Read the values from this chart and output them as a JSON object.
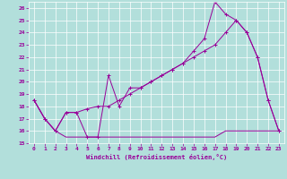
{
  "xlabel": "Windchill (Refroidissement éolien,°C)",
  "background_color": "#b2dfdb",
  "grid_color": "#ffffff",
  "line_color": "#990099",
  "xlim": [
    -0.5,
    23.5
  ],
  "ylim": [
    15,
    26.5
  ],
  "yticks": [
    15,
    16,
    17,
    18,
    19,
    20,
    21,
    22,
    23,
    24,
    25,
    26
  ],
  "xticks": [
    0,
    1,
    2,
    3,
    4,
    5,
    6,
    7,
    8,
    9,
    10,
    11,
    12,
    13,
    14,
    15,
    16,
    17,
    18,
    19,
    20,
    21,
    22,
    23
  ],
  "line1_x": [
    0,
    1,
    2,
    3,
    4,
    5,
    6,
    7,
    8,
    9,
    10,
    11,
    12,
    13,
    14,
    15,
    16,
    17,
    18,
    19,
    20,
    21,
    22,
    23
  ],
  "line1_y": [
    18.5,
    17,
    16,
    17.5,
    17.5,
    15.5,
    15.5,
    20.5,
    18,
    19.5,
    19.5,
    20,
    20.5,
    21,
    21.5,
    22.5,
    23.5,
    26.5,
    25.5,
    25,
    24,
    22,
    18.5,
    16
  ],
  "line2_x": [
    0,
    1,
    2,
    3,
    4,
    5,
    6,
    7,
    8,
    9,
    10,
    11,
    12,
    13,
    14,
    15,
    16,
    17,
    18,
    19,
    20,
    21,
    22,
    23
  ],
  "line2_y": [
    18.5,
    17,
    16,
    15.5,
    15.5,
    15.5,
    15.5,
    15.5,
    15.5,
    15.5,
    15.5,
    15.5,
    15.5,
    15.5,
    15.5,
    15.5,
    15.5,
    15.5,
    16,
    16,
    16,
    16,
    16,
    16
  ],
  "line3_x": [
    0,
    1,
    2,
    3,
    4,
    5,
    6,
    7,
    8,
    9,
    10,
    11,
    12,
    13,
    14,
    15,
    16,
    17,
    18,
    19,
    20,
    21,
    22,
    23
  ],
  "line3_y": [
    18.5,
    17,
    16,
    17.5,
    17.5,
    17.8,
    18,
    18,
    18.5,
    19,
    19.5,
    20,
    20.5,
    21,
    21.5,
    22,
    22.5,
    23,
    24,
    25,
    24,
    22,
    18.5,
    16
  ]
}
